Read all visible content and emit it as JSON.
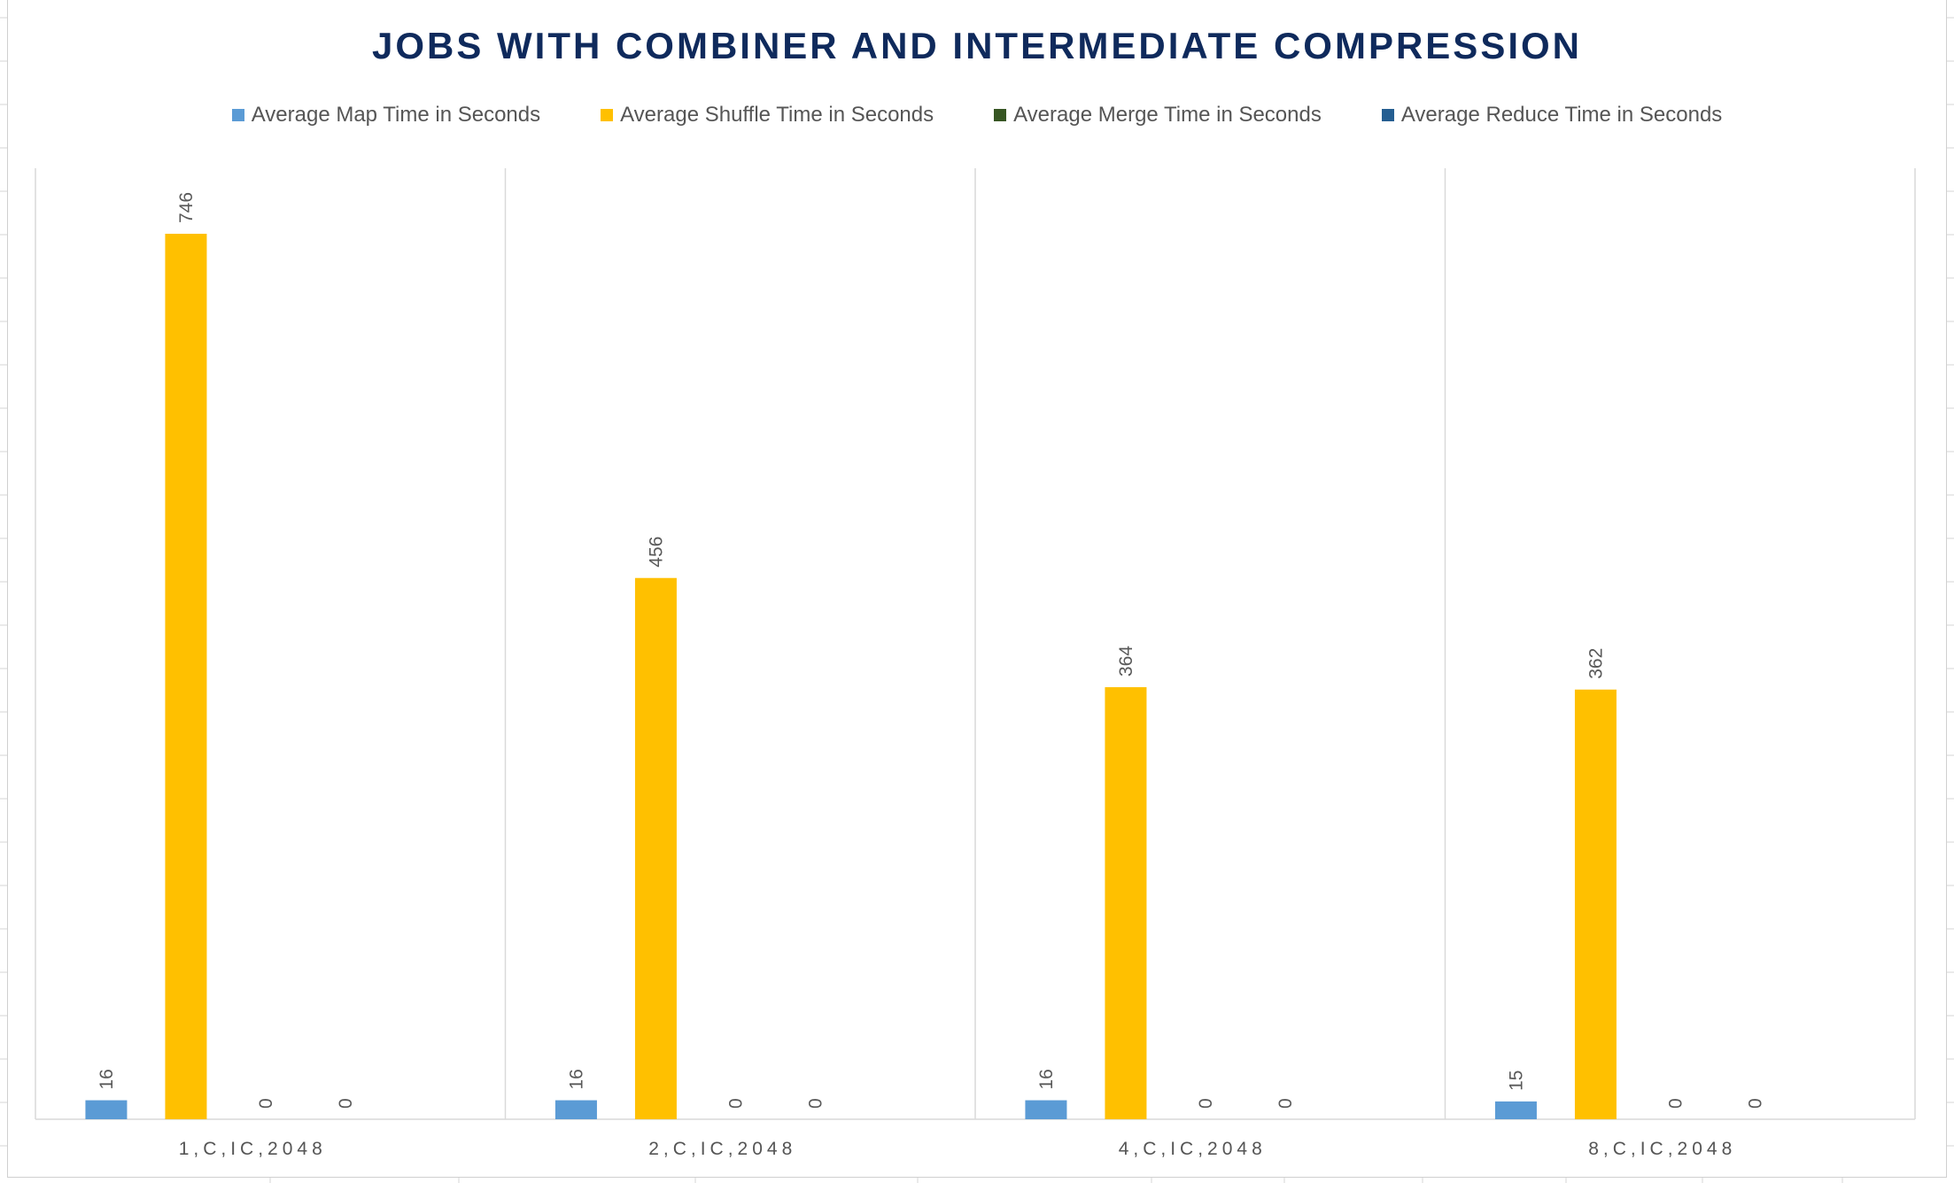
{
  "chart_data": {
    "type": "bar",
    "title": "JOBS WITH COMBINER AND INTERMEDIATE COMPRESSION",
    "categories": [
      "1,C,IC,2048",
      "2,C,IC,2048",
      "4,C,IC,2048",
      "8,C,IC,2048"
    ],
    "series": [
      {
        "name": "Average Map Time in Seconds",
        "color": "#5b9bd5",
        "values": [
          16,
          16,
          16,
          15
        ]
      },
      {
        "name": "Average Shuffle Time in Seconds",
        "color": "#ffc000",
        "values": [
          746,
          456,
          364,
          362
        ]
      },
      {
        "name": "Average Merge Time in Seconds",
        "color": "#375623",
        "values": [
          0,
          0,
          0,
          0
        ]
      },
      {
        "name": "Average Reduce Time in Seconds",
        "color": "#255e91",
        "values": [
          0,
          0,
          0,
          0
        ]
      }
    ],
    "ylim": [
      0,
      790
    ],
    "legend_position": "top",
    "grid": false,
    "data_labels": true
  }
}
